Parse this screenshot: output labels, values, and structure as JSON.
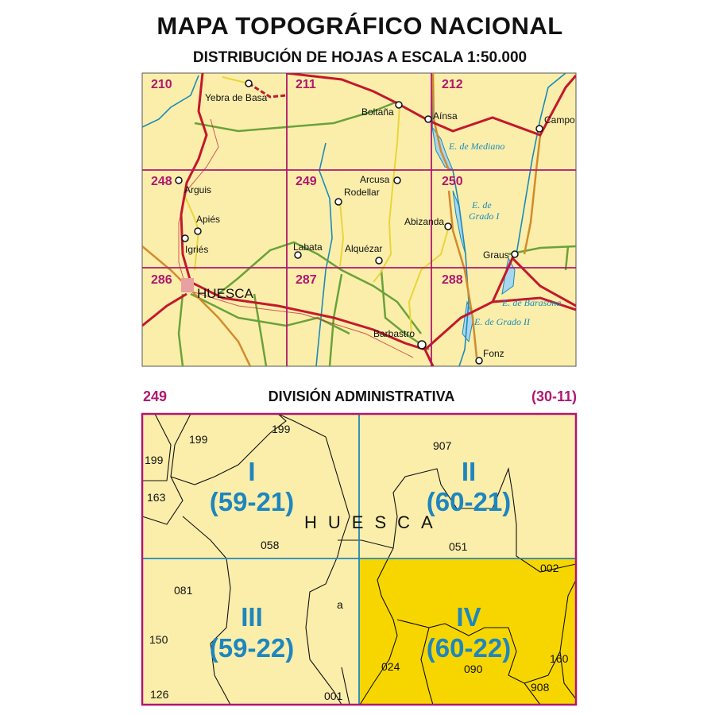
{
  "title": "MAPA TOPOGRÁFICO NACIONAL",
  "subtitle": "DISTRIBUCIÓN DE HOJAS A ESCALA 1:50.000",
  "colors": {
    "background": "#fbeeab",
    "highlight": "#f7d600",
    "sheet_grid": "#b0176f",
    "water": "#1a8ab8",
    "road_main": "#c3182c",
    "road_secondary": "#6aa23a",
    "road_local": "#d38a2c",
    "road_minor": "#e8d53a"
  },
  "sheet_map": {
    "sheets": [
      "210",
      "211",
      "212",
      "248",
      "249",
      "250",
      "286",
      "287",
      "288"
    ],
    "towns": [
      "Yebra de Basa",
      "Boltaña",
      "Aínsa",
      "Campo",
      "Arguis",
      "Arcusa",
      "Rodellar",
      "Apiés",
      "Igriés",
      "Abizanda",
      "Labata",
      "Alquézar",
      "Graus",
      "Barbastro",
      "Fonz"
    ],
    "city": "HUESCA",
    "reservoirs": [
      "E. de Mediano",
      "E. de",
      "Grado I",
      "E. de Barasona",
      "E. de Grado II"
    ]
  },
  "admin": {
    "sheet": "249",
    "title": "DIVISIÓN ADMINISTRATIVA",
    "code": "(30-11)",
    "province": "HUESCA",
    "quadrants": [
      {
        "roman": "I",
        "code": "(59-21)"
      },
      {
        "roman": "II",
        "code": "(60-21)"
      },
      {
        "roman": "III",
        "code": "(59-22)"
      },
      {
        "roman": "IV",
        "code": "(60-22)",
        "highlighted": true
      }
    ],
    "municipalities": [
      "199",
      "199",
      "199",
      "163",
      "058",
      "907",
      "051",
      "081",
      "a",
      "150",
      "126",
      "001",
      "002",
      "024",
      "090",
      "160",
      "908"
    ]
  }
}
